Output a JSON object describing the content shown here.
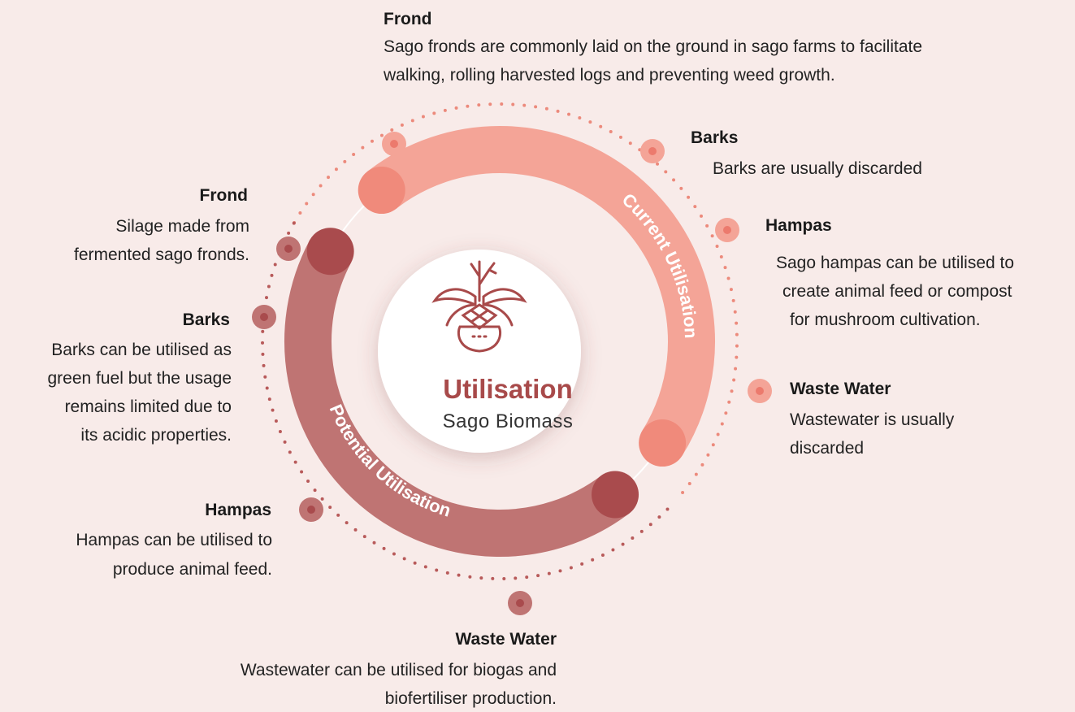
{
  "center": {
    "title": "Utilisation",
    "subtitle": "Sago Biomass"
  },
  "rings": {
    "current": "Current Utilisation",
    "potential": "Potential Utilisation"
  },
  "items": [
    {
      "title": "Frond",
      "lines": [
        "Sago fronds are commonly laid on the ground in sago farms to facilitate",
        "walking, rolling harvested logs and preventing weed growth."
      ]
    },
    {
      "title": "Barks",
      "lines": [
        "Barks are usually discarded"
      ]
    },
    {
      "title": "Hampas",
      "lines": [
        "Sago hampas can be utilised to",
        "create animal feed or compost",
        "for mushroom cultivation."
      ]
    },
    {
      "title": "Waste Water",
      "lines": [
        "Wastewater is usually",
        "discarded"
      ]
    },
    {
      "title": "Frond",
      "lines": [
        "Silage made from",
        "fermented sago fronds."
      ]
    },
    {
      "title": "Barks",
      "lines": [
        "Barks can be utilised as",
        "green fuel but the usage",
        "remains limited due to",
        "its acidic properties."
      ]
    },
    {
      "title": "Hampas",
      "lines": [
        "Hampas can be utilised to",
        "produce animal feed."
      ]
    },
    {
      "title": "Waste Water",
      "lines": [
        "Wastewater can be utilised for biogas and",
        "biofertiliser production."
      ]
    }
  ]
}
